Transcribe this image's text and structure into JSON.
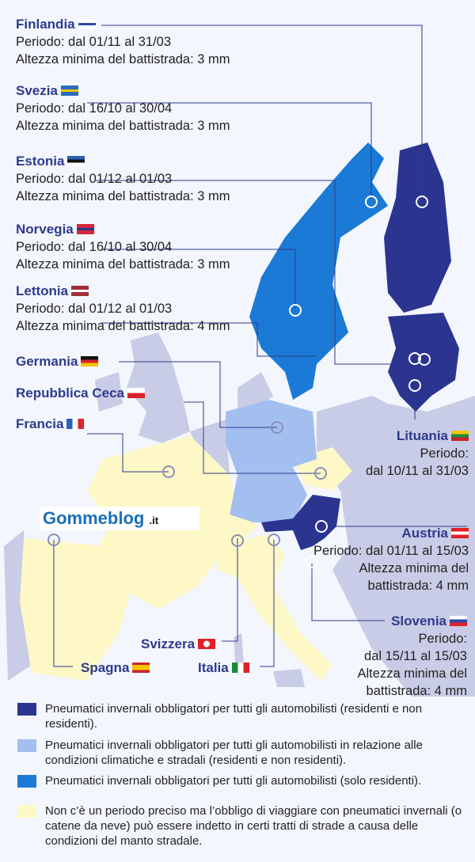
{
  "colors": {
    "mandatory_all": "#2b3590",
    "conditional": "#a3bff0",
    "residents_only": "#1a7ad6",
    "no_period": "#fdf8c6",
    "other": "#c9cce6",
    "label": "#2e3a8c"
  },
  "countries": {
    "finlandia": {
      "name": "Finlandia",
      "period": "Periodo: dal 01/11 al 31/03",
      "tread": "Altezza minima del battistrada: 3 mm"
    },
    "svezia": {
      "name": "Svezia",
      "period": "Periodo: dal 16/10 al 30/04",
      "tread": "Altezza minima del battistrada: 3 mm"
    },
    "estonia": {
      "name": "Estonia",
      "period": "Periodo: dal 01/12 al 01/03",
      "tread": "Altezza minima del battistrada: 3 mm"
    },
    "norvegia": {
      "name": "Norvegia",
      "period": "Periodo: dal 16/10 al 30/04",
      "tread": "Altezza minima del battistrada: 3 mm"
    },
    "lettonia": {
      "name": "Lettonia",
      "period": "Periodo: dal 01/12 al 01/03",
      "tread": "Altezza minima del battistrada: 4 mm"
    },
    "germania": {
      "name": "Germania"
    },
    "ceca": {
      "name": "Repubblica Ceca"
    },
    "francia": {
      "name": "Francia"
    },
    "lituania": {
      "name": "Lituania",
      "period_label": "Periodo:",
      "period": "dal 10/11 al 31/03"
    },
    "austria": {
      "name": "Austria",
      "period": "Periodo: dal 01/11 al 15/03",
      "tread_1": "Altezza minima del",
      "tread_2": "battistrada: 4 mm"
    },
    "slovenia": {
      "name": "Slovenia",
      "period_label": "Periodo:",
      "period": "dal 15/11 al 15/03",
      "tread_1": "Altezza minima del",
      "tread_2": "battistrada: 4 mm"
    },
    "svizzera": {
      "name": "Svizzera"
    },
    "spagna": {
      "name": "Spagna"
    },
    "italia": {
      "name": "Italia"
    }
  },
  "logo": {
    "text": "Gommeblog",
    "suffix": ".it"
  },
  "legend": [
    {
      "color": "#2b3590",
      "text": "Pneumatici invernali obbligatori per tutti gli automobilisti (residenti e non residenti)."
    },
    {
      "color": "#a3bff0",
      "text": "Pneumatici invernali obbligatori per tutti gli automobilisti in relazione alle condizioni climatiche e stradali (residenti e non residenti)."
    },
    {
      "color": "#1a7ad6",
      "text": "Pneumatici invernali obbligatori per tutti gli automobilisti (solo residenti)."
    },
    {
      "color": "#fdf8c6",
      "text": "Non c’è un periodo preciso ma l’obbligo di viaggiare con pneumatici invernali (o catene da neve) può essere indetto in certi tratti di strade a causa delle condizioni del manto stradale."
    }
  ]
}
